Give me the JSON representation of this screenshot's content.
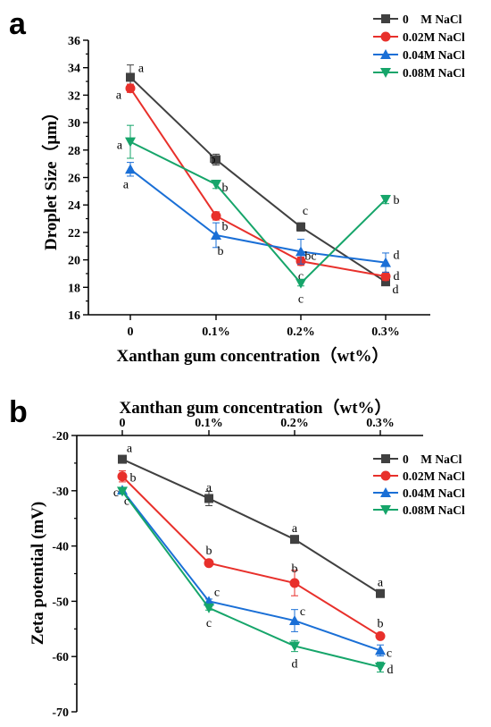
{
  "figure": {
    "panel_a_letter": "a",
    "panel_b_letter": "b"
  },
  "chart_data": [
    {
      "type": "line",
      "panel": "a",
      "title": "",
      "xlabel": "Xanthan gum concentration（wt%）",
      "ylabel": "Droplet Size（μm）",
      "categories": [
        "0",
        "0.1%",
        "0.2%",
        "0.3%"
      ],
      "ylim": [
        16,
        36
      ],
      "yticks": [
        16,
        18,
        20,
        22,
        24,
        26,
        28,
        30,
        32,
        34,
        36
      ],
      "legend_position": "top-right",
      "grid": false,
      "series": [
        {
          "name": "0    M NaCl",
          "color": "#404040",
          "marker": "square",
          "values": [
            33.3,
            27.3,
            22.4,
            18.4
          ],
          "errors": [
            0.9,
            0.4,
            0.3,
            0.2
          ],
          "letters": [
            "a",
            "b",
            "c",
            "d"
          ]
        },
        {
          "name": "0.02M NaCl",
          "color": "#e8302b",
          "marker": "circle",
          "values": [
            32.5,
            23.2,
            19.9,
            18.8
          ],
          "errors": [
            0.3,
            0.3,
            0.3,
            0.3
          ],
          "letters": [
            "a",
            "b",
            "c",
            "d"
          ]
        },
        {
          "name": "0.04M NaCl",
          "color": "#1a6fd6",
          "marker": "triangle-up",
          "values": [
            26.6,
            21.8,
            20.6,
            19.8
          ],
          "errors": [
            0.5,
            0.9,
            0.9,
            0.7
          ],
          "letters": [
            "a",
            "b",
            "bc",
            "d"
          ]
        },
        {
          "name": "0.08M NaCl",
          "color": "#16a56a",
          "marker": "triangle-down",
          "values": [
            28.6,
            25.5,
            18.3,
            24.4
          ],
          "errors": [
            1.2,
            0.3,
            0.2,
            0.3
          ],
          "letters": [
            "a",
            "b",
            "c",
            "b"
          ]
        }
      ]
    },
    {
      "type": "line",
      "panel": "b",
      "title": "",
      "xlabel": "Xanthan gum concentration（wt%）",
      "ylabel": "Zeta potential (mV)",
      "categories": [
        "0",
        "0.1%",
        "0.2%",
        "0.3%"
      ],
      "ylim": [
        -70,
        -20
      ],
      "yticks": [
        -70,
        -60,
        -50,
        -40,
        -30,
        -20
      ],
      "x_axis_position": "top",
      "legend_position": "top-right",
      "grid": false,
      "series": [
        {
          "name": "0    M NaCl",
          "color": "#404040",
          "marker": "square",
          "values": [
            -24.3,
            -31.4,
            -38.8,
            -48.6
          ],
          "errors": [
            0.3,
            1.3,
            0.6,
            0.5
          ],
          "letters": [
            "a",
            "a",
            "a",
            "a"
          ]
        },
        {
          "name": "0.02M NaCl",
          "color": "#e8302b",
          "marker": "circle",
          "values": [
            -27.4,
            -43.1,
            -46.7,
            -56.3
          ],
          "errors": [
            1.0,
            0.3,
            2.3,
            0.4
          ],
          "letters": [
            "b",
            "b",
            "b",
            "b"
          ]
        },
        {
          "name": "0.04M NaCl",
          "color": "#1a6fd6",
          "marker": "triangle-up",
          "values": [
            -29.9,
            -50.0,
            -53.5,
            -58.9
          ],
          "errors": [
            0.4,
            0.4,
            2.0,
            1.0
          ],
          "letters": [
            "c",
            "c",
            "c",
            "c"
          ]
        },
        {
          "name": "0.08M NaCl",
          "color": "#16a56a",
          "marker": "triangle-down",
          "values": [
            -30.1,
            -51.2,
            -58.1,
            -61.9
          ],
          "errors": [
            0.4,
            0.4,
            1.0,
            0.9
          ],
          "letters": [
            "c",
            "c",
            "d",
            "d"
          ]
        }
      ]
    }
  ]
}
